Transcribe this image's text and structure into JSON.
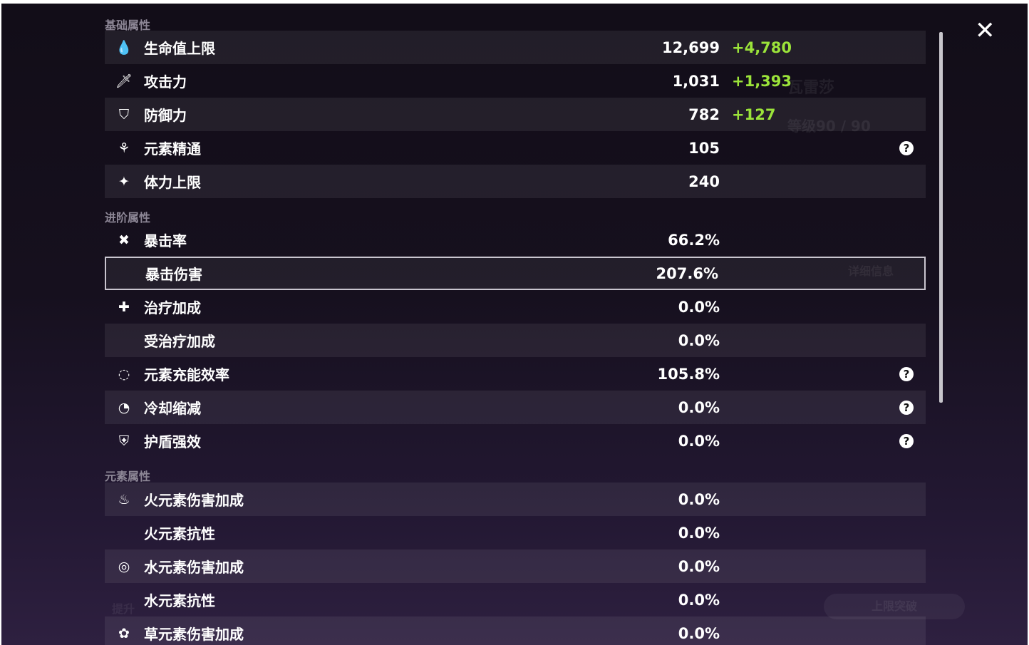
{
  "background": {
    "name": "瓦雷莎",
    "level": "等级90 / 90",
    "detail_button": "详细信息",
    "ascend_button": "上限突破",
    "upgrade_button": "提升"
  },
  "sections": [
    {
      "title": "基础属性",
      "rows": [
        {
          "icon": "hp-drop-icon",
          "glyph": "💧",
          "label": "生命值上限",
          "value": "12,699",
          "bonus": "+4,780"
        },
        {
          "icon": "sword-icon",
          "glyph": "🗡",
          "label": "攻击力",
          "value": "1,031",
          "bonus": "+1,393"
        },
        {
          "icon": "shield-icon",
          "glyph": "⛉",
          "label": "防御力",
          "value": "782",
          "bonus": "+127"
        },
        {
          "icon": "elemental-mastery-icon",
          "glyph": "⚘",
          "label": "元素精通",
          "value": "105",
          "help": true
        },
        {
          "icon": "stamina-icon",
          "glyph": "✦",
          "label": "体力上限",
          "value": "240"
        }
      ]
    },
    {
      "title": "进阶属性",
      "rows": [
        {
          "icon": "crit-rate-icon",
          "glyph": "✖",
          "label": "暴击率",
          "value": "66.2%"
        },
        {
          "icon": "crit-dmg-icon",
          "glyph": "",
          "label": "暴击伤害",
          "value": "207.6%",
          "selected": true
        },
        {
          "icon": "healing-icon",
          "glyph": "✚",
          "label": "治疗加成",
          "value": "0.0%"
        },
        {
          "icon": "",
          "glyph": "",
          "label": "受治疗加成",
          "value": "0.0%"
        },
        {
          "icon": "energy-recharge-icon",
          "glyph": "◌",
          "label": "元素充能效率",
          "value": "105.8%",
          "help": true
        },
        {
          "icon": "cooldown-icon",
          "glyph": "◔",
          "label": "冷却缩减",
          "value": "0.0%",
          "help": true
        },
        {
          "icon": "shield-strength-icon",
          "glyph": "⛨",
          "label": "护盾强效",
          "value": "0.0%",
          "help": true
        }
      ]
    },
    {
      "title": "元素属性",
      "rows": [
        {
          "icon": "pyro-icon",
          "glyph": "♨",
          "label": "火元素伤害加成",
          "value": "0.0%"
        },
        {
          "icon": "",
          "glyph": "",
          "label": "火元素抗性",
          "value": "0.0%"
        },
        {
          "icon": "hydro-icon",
          "glyph": "◎",
          "label": "水元素伤害加成",
          "value": "0.0%"
        },
        {
          "icon": "",
          "glyph": "",
          "label": "水元素抗性",
          "value": "0.0%"
        },
        {
          "icon": "dendro-icon",
          "glyph": "✿",
          "label": "草元素伤害加成",
          "value": "0.0%"
        }
      ]
    }
  ],
  "close_glyph": "✕"
}
